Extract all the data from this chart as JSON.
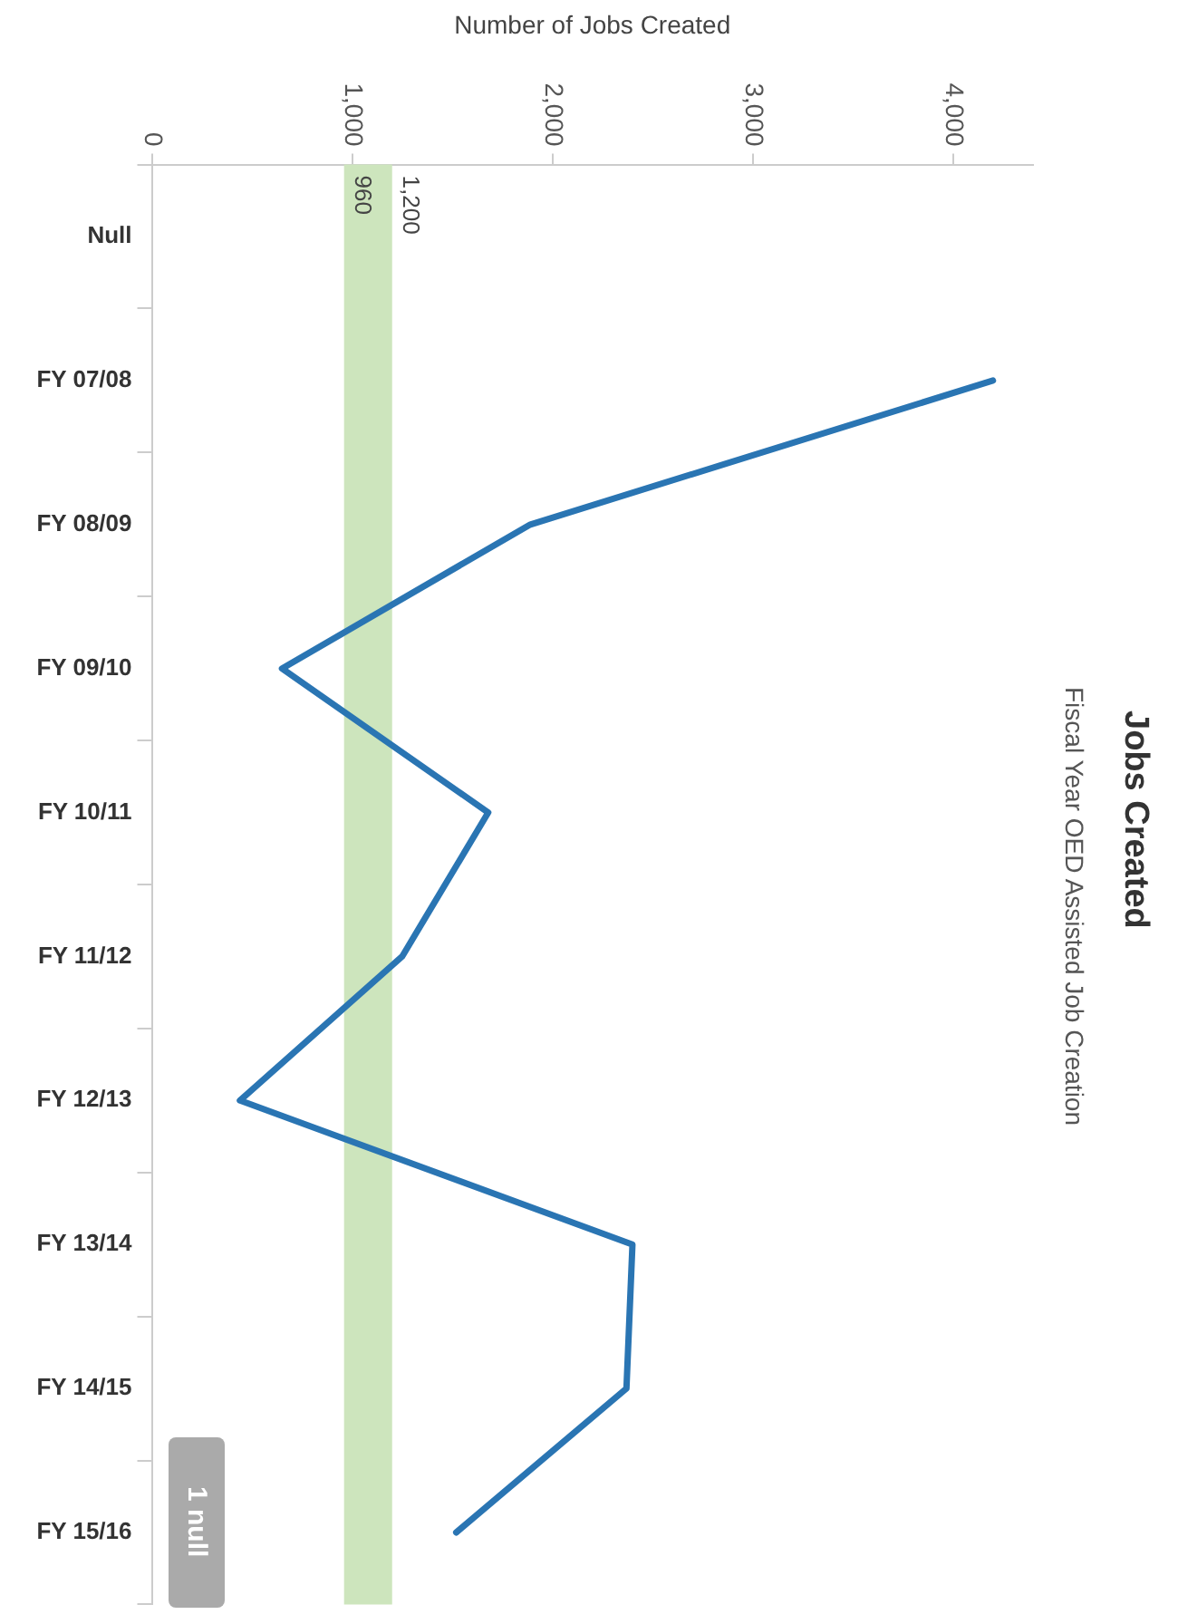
{
  "chart_data": {
    "type": "line",
    "orientation": "horizontal",
    "title": "Jobs Created",
    "subtitle": "Fiscal Year OED Assisted Job Creation",
    "xlabel": "Number of Jobs Created",
    "categories": [
      "Null",
      "FY 07/08",
      "FY 08/09",
      "FY 09/10",
      "FY 10/11",
      "FY 11/12",
      "FY 12/13",
      "FY 13/14",
      "FY 14/15",
      "FY 15/16"
    ],
    "values": [
      null,
      4200,
      1890,
      650,
      1680,
      1250,
      440,
      2400,
      2370,
      1520
    ],
    "color": "#2a75b3",
    "xlim": [
      0,
      4400
    ],
    "xticks": [
      0,
      {
        "value": 1000,
        "label": "1,000"
      },
      {
        "value": 2000,
        "label": "2,000"
      },
      {
        "value": 3000,
        "label": "3,000"
      },
      {
        "value": 4000,
        "label": "4,000"
      }
    ],
    "bands": [
      {
        "axis": "x",
        "from": 960,
        "to": 1200,
        "color": "#cde5bd"
      }
    ],
    "annotations": [
      {
        "text": "960",
        "x": 960
      },
      {
        "text": "1,200",
        "x": 1200
      },
      "1 null"
    ],
    "grid": false,
    "legend": false,
    "marker": "none",
    "line_style": "solid"
  }
}
